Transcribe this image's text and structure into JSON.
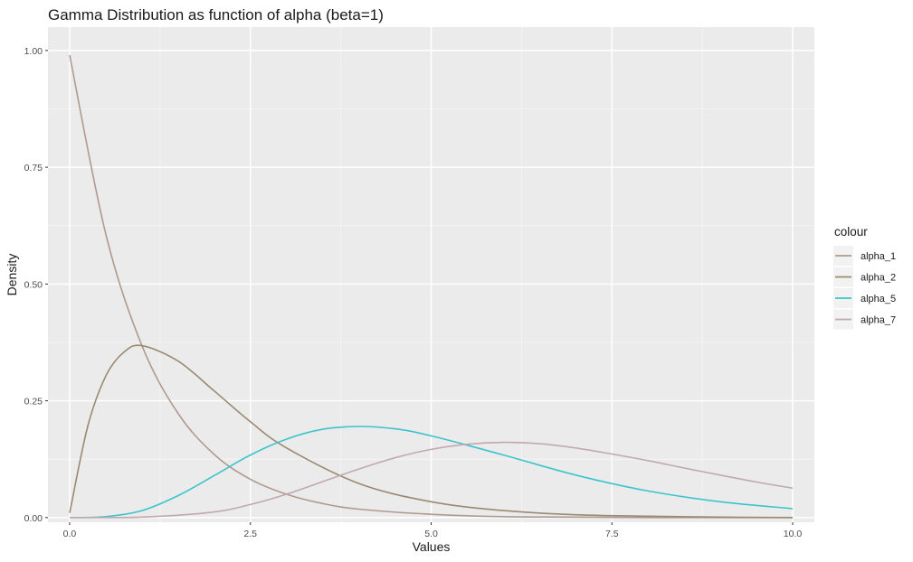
{
  "chart_data": {
    "type": "line",
    "title": "Gamma Distribution as function of alpha (beta=1)",
    "xlabel": "Values",
    "ylabel": "Density",
    "xlim": [
      -0.3,
      10.3
    ],
    "ylim": [
      -0.01,
      1.05
    ],
    "x_ticks": [
      0,
      2.5,
      5,
      7.5,
      10
    ],
    "x_tick_labels": [
      "0.0",
      "2.5",
      "5.0",
      "7.5",
      "10.0"
    ],
    "y_ticks": [
      0,
      0.25,
      0.5,
      0.75,
      1
    ],
    "y_tick_labels": [
      "0.00",
      "0.25",
      "0.50",
      "0.75",
      "1.00"
    ],
    "grid": true,
    "legend": {
      "title": "colour",
      "placement": "right"
    },
    "series": [
      {
        "name": "alpha_1",
        "color": "#b09a90",
        "x": [
          0,
          0.5,
          1,
          1.5,
          2,
          2.5,
          3,
          3.5,
          4,
          5,
          6,
          7,
          8,
          9,
          10
        ],
        "y": [
          0.99,
          0.607,
          0.368,
          0.223,
          0.135,
          0.082,
          0.05,
          0.03,
          0.018,
          0.007,
          0.002,
          0.001,
          0,
          0,
          0
        ]
      },
      {
        "name": "alpha_2",
        "color": "#9a8a72",
        "x": [
          0,
          0.25,
          0.5,
          0.75,
          1,
          1.5,
          2,
          2.5,
          3,
          4,
          5,
          6,
          7,
          8,
          9,
          10
        ],
        "y": [
          0.01,
          0.195,
          0.303,
          0.354,
          0.368,
          0.335,
          0.271,
          0.205,
          0.149,
          0.073,
          0.034,
          0.015,
          0.006,
          0.003,
          0.001,
          0
        ]
      },
      {
        "name": "alpha_5",
        "color": "#3cc4cc",
        "x": [
          0,
          0.5,
          1,
          1.5,
          2,
          2.5,
          3,
          3.5,
          4,
          4.5,
          5,
          6,
          7,
          8,
          9,
          10
        ],
        "y": [
          0,
          0.002,
          0.015,
          0.047,
          0.09,
          0.134,
          0.168,
          0.189,
          0.195,
          0.19,
          0.175,
          0.134,
          0.091,
          0.057,
          0.034,
          0.019
        ]
      },
      {
        "name": "alpha_7",
        "color": "#c0a9b0",
        "x": [
          0,
          1,
          2,
          2.5,
          3,
          3.5,
          4,
          4.5,
          5,
          5.5,
          6,
          6.5,
          7,
          7.5,
          8,
          8.5,
          9,
          9.5,
          10
        ],
        "y": [
          0,
          0.001,
          0.012,
          0.028,
          0.05,
          0.077,
          0.104,
          0.128,
          0.146,
          0.157,
          0.161,
          0.158,
          0.149,
          0.136,
          0.122,
          0.106,
          0.091,
          0.076,
          0.063
        ]
      }
    ]
  }
}
